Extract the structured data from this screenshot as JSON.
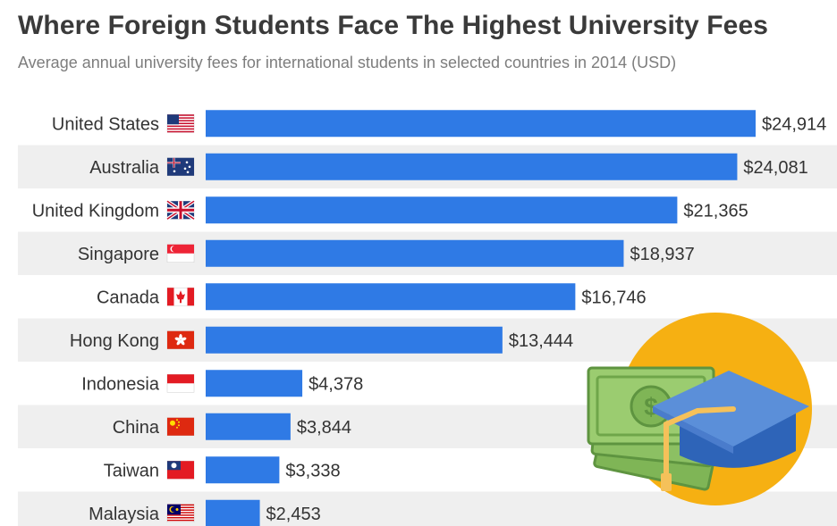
{
  "header": {
    "title": "Where Foreign Students Face The Highest University Fees",
    "subtitle": "Average annual university fees for international students in selected countries in 2014 (USD)"
  },
  "colors": {
    "bar": "#2f7ae5",
    "row_stripe": "#efefef",
    "illustration_circle": "#f6b012",
    "cap": "#5b8fd9",
    "tassel": "#f5c15a",
    "money": "#8cc063"
  },
  "chart_data": {
    "type": "bar",
    "orientation": "horizontal",
    "categories": [
      "United States",
      "Australia",
      "United Kingdom",
      "Singapore",
      "Canada",
      "Hong Kong",
      "Indonesia",
      "China",
      "Taiwan",
      "Malaysia"
    ],
    "values": [
      24914,
      24081,
      21365,
      18937,
      16746,
      13444,
      4378,
      3844,
      3338,
      2453
    ],
    "value_labels": [
      "$24,914",
      "$24,081",
      "$21,365",
      "$18,937",
      "$16,746",
      "$13,444",
      "$4,378",
      "$3,844",
      "$3,338",
      "$2,453"
    ],
    "flags": [
      "us-flag-icon",
      "australia-flag-icon",
      "uk-flag-icon",
      "singapore-flag-icon",
      "canada-flag-icon",
      "hong-kong-flag-icon",
      "indonesia-flag-icon",
      "china-flag-icon",
      "taiwan-flag-icon",
      "malaysia-flag-icon"
    ],
    "xlim": [
      0,
      24914
    ],
    "grid": false,
    "legend": "none"
  },
  "illustration": "graduation-cap-and-money-icon"
}
